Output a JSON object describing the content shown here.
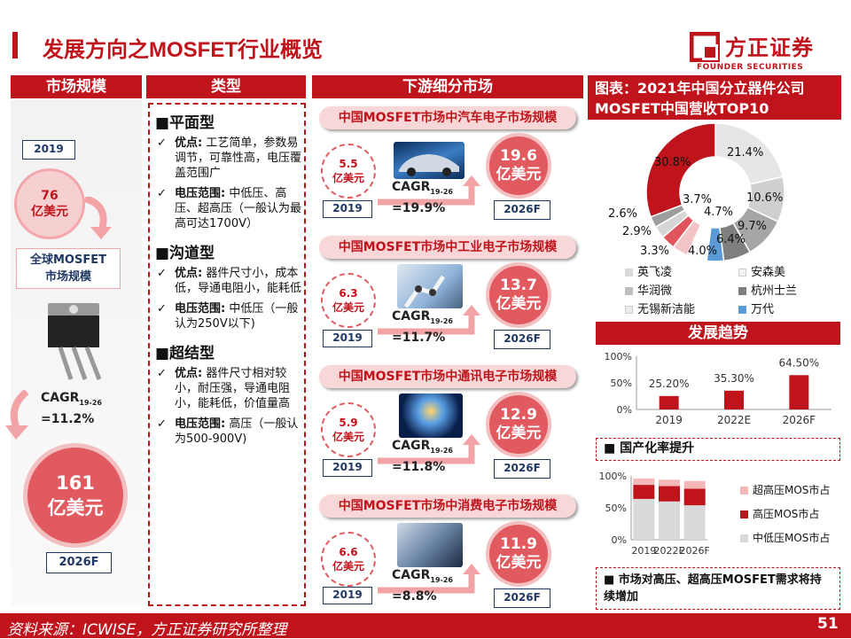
{
  "title": "发展方向之MOSFET行业概览",
  "logo": {
    "name": "方正证券",
    "sub": "FOUNDER SECURITIES"
  },
  "headers": {
    "market": "市场规模",
    "type": "类型",
    "downstream": "下游细分市场",
    "chart": "图表：2021年中国分立器件公司MOSFET中国营收TOP10"
  },
  "left": {
    "year_start": "2019",
    "value_start": "76\n亿美元",
    "label": "全球MOSFET\n市场规模",
    "cagr_main": "CAGR",
    "cagr_sub": "19-26",
    "cagr_value": "=11.2%",
    "value_end": "161\n亿美元",
    "year_end": "2026F"
  },
  "types": [
    {
      "title": "■平面型",
      "items": [
        {
          "key": "优点:",
          "text": "工艺简单，参数易调节，可靠性高，电压覆盖范围广"
        },
        {
          "key": "电压范围:",
          "text": "中低压、高压、超高压（一般认为最高可达1700V）"
        }
      ]
    },
    {
      "title": "■沟道型",
      "items": [
        {
          "key": "优点:",
          "text": "器件尺寸小，成本低，导通电阻小，能耗低"
        },
        {
          "key": "电压范围:",
          "text": "中低压（一般认为250V以下)"
        }
      ]
    },
    {
      "title": "■超结型",
      "items": [
        {
          "key": "优点:",
          "text": "器件尺寸相对较小，耐压强，导通电阻小，能耗低，价值量高"
        },
        {
          "key": "电压范围:",
          "text": "高压（一般认为500-900V)"
        }
      ]
    }
  ],
  "markets": [
    {
      "title": "中国MOSFET市场中汽车电子市场规模",
      "start": "5.5\n亿美元",
      "year_start": "2019",
      "cagr": "CAGR",
      "cagr_sub": "19-26",
      "cagr_value": "=19.9%",
      "end": "19.6\n亿美元",
      "year_end": "2026F",
      "icon": "car-image-icon"
    },
    {
      "title": "中国MOSFET市场中工业电子市场规模",
      "start": "6.3\n亿美元",
      "year_start": "2019",
      "cagr": "CAGR",
      "cagr_sub": "19-26",
      "cagr_value": "=11.7%",
      "end": "13.7\n亿美元",
      "year_end": "2026F",
      "icon": "industrial-robot-image-icon"
    },
    {
      "title": "中国MOSFET市场中通讯电子市场规模",
      "start": "5.9\n亿美元",
      "year_start": "2019",
      "cagr": "CAGR",
      "cagr_sub": "19-26",
      "cagr_value": "=11.8%",
      "end": "12.9\n亿美元",
      "year_end": "2026F",
      "icon": "globe-network-image-icon"
    },
    {
      "title": "中国MOSFET市场中消费电子市场规模",
      "start": "6.6\n亿美元",
      "year_start": "2019",
      "cagr": "CAGR",
      "cagr_sub": "19-26",
      "cagr_value": "=8.8%",
      "end": "11.9\n亿美元",
      "year_end": "2026F",
      "icon": "hand-phone-image-icon"
    }
  ],
  "donut_labels": [
    "30.8%",
    "21.4%",
    "10.6%",
    "9.7%",
    "6.4%",
    "4.0%",
    "4.7%",
    "3.7%",
    "3.3%",
    "2.9%",
    "2.6%"
  ],
  "donut_legend": [
    {
      "name": "英飞凌",
      "color": "#d9d9d9"
    },
    {
      "name": "安森美",
      "color": "#f2f2f2"
    },
    {
      "name": "华润微",
      "color": "#bfbfbf"
    },
    {
      "name": "杭州士兰",
      "color": "#7f7f7f"
    },
    {
      "name": "无锡新洁能",
      "color": "#ececec"
    },
    {
      "name": "万代",
      "color": "#5b9bd5"
    }
  ],
  "trend_header": "发展趋势",
  "domestic_title": "■ 国产化率提升",
  "bottom_note": "■ 市场对高压、超高压MOSFET需求将持续增加",
  "chart_data": [
    {
      "type": "pie",
      "title": "图表：2021年中国分立器件公司MOSFET中国营收TOP10",
      "values": [
        30.8,
        21.4,
        10.6,
        9.7,
        6.4,
        4.0,
        4.7,
        3.7,
        3.3,
        2.9,
        2.6
      ],
      "colors": [
        "#c0141c",
        "#e6e6e6",
        "#cfcfcf",
        "#a6a6a6",
        "#7f7f7f",
        "#5b9bd5",
        "#ffffff",
        "#f2c4c6",
        "#e0555b",
        "#d6d6d6",
        "#9e9e9e"
      ],
      "legend": [
        "英飞凌",
        "安森美",
        "华润微",
        "杭州士兰",
        "无锡新洁能",
        "万代"
      ]
    },
    {
      "type": "bar",
      "categories": [
        "2019",
        "2022E",
        "2026F"
      ],
      "values": [
        25.2,
        35.3,
        64.5
      ],
      "labels": [
        "25.20%",
        "35.30%",
        "64.50%"
      ],
      "yticks": [
        "0%",
        "50%",
        "100%"
      ],
      "ylim": [
        0,
        100
      ]
    },
    {
      "type": "bar",
      "stacked": true,
      "categories": [
        "2019",
        "2022E",
        "2026F"
      ],
      "series": [
        {
          "name": "中低压MOS市占",
          "values": [
            64,
            60,
            54
          ],
          "color": "#d9d9d9"
        },
        {
          "name": "高压MOS市占",
          "values": [
            22,
            24,
            26
          ],
          "color": "#c0141c"
        },
        {
          "name": "超高压MOS市占",
          "values": [
            10,
            10,
            12
          ],
          "color": "#f4b8b8"
        }
      ],
      "yticks": [
        "0%",
        "50%",
        "100%"
      ],
      "ylim": [
        0,
        100
      ]
    }
  ],
  "footer": {
    "source": "资料来源：ICWISE，方正证券研究所整理",
    "page": "51"
  }
}
